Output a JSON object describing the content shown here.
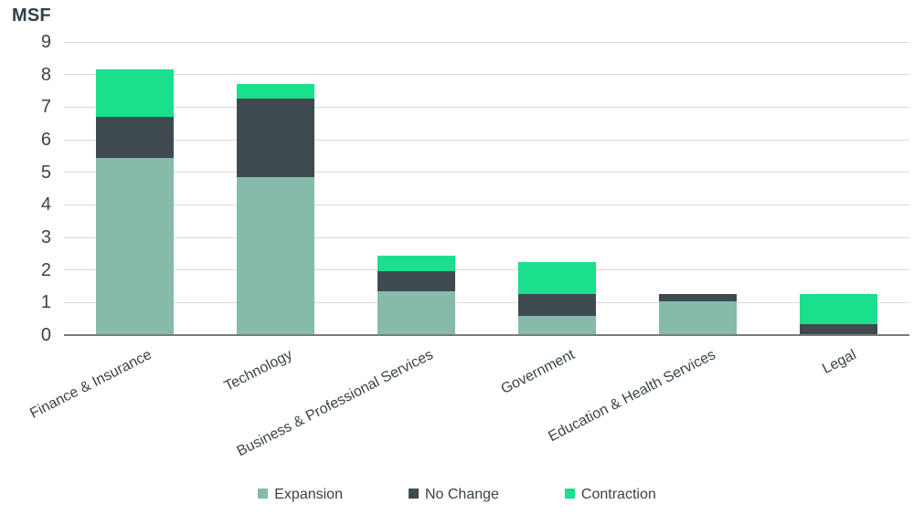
{
  "colors": {
    "expansion": "#86BBAB",
    "no_change": "#3E4A50",
    "contraction": "#1ADF8C",
    "gridline": "#DADADA",
    "baseline": "#7A7A7A",
    "text": "#36424A"
  },
  "chart_data": {
    "type": "bar",
    "stacked": true,
    "title": "",
    "ylabel": "MSF",
    "xlabel": "",
    "ylim": [
      0,
      9
    ],
    "ytick_step": 1,
    "grid": true,
    "legend_position": "bottom",
    "categories": [
      "Finance & Insurance",
      "Technology",
      "Business & Professional Services",
      "Government",
      "Education & Health Services",
      "Legal"
    ],
    "series": [
      {
        "name": "Expansion",
        "color": "#86BBAB",
        "values": [
          5.45,
          4.85,
          1.35,
          0.6,
          1.05,
          0
        ]
      },
      {
        "name": "No Change",
        "color": "#3E4A50",
        "values": [
          1.25,
          2.4,
          0.6,
          0.65,
          0.2,
          0.35
        ]
      },
      {
        "name": "Contraction",
        "color": "#1ADF8C",
        "values": [
          1.45,
          0.45,
          0.5,
          1.0,
          0,
          0.9
        ]
      }
    ],
    "totals": [
      8.15,
      7.7,
      2.45,
      2.25,
      1.25,
      1.25
    ]
  }
}
